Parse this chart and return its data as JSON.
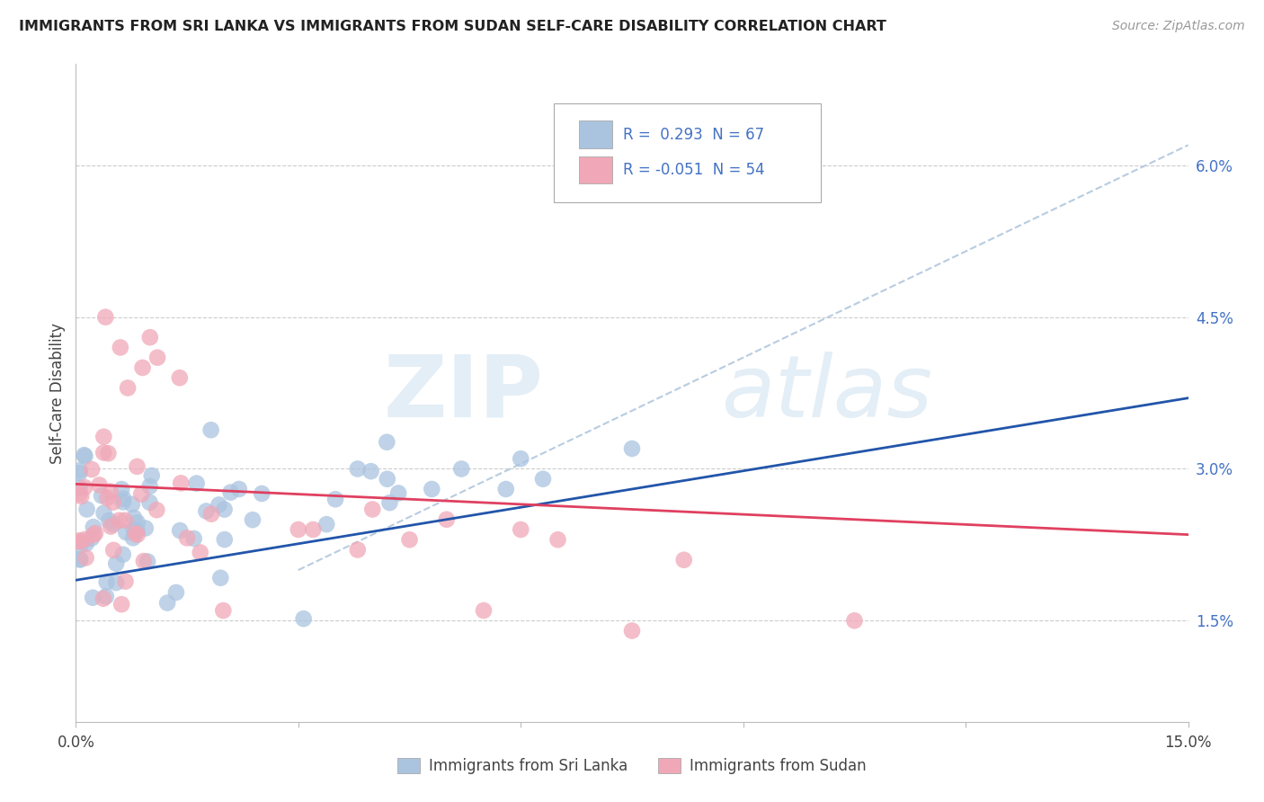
{
  "title": "IMMIGRANTS FROM SRI LANKA VS IMMIGRANTS FROM SUDAN SELF-CARE DISABILITY CORRELATION CHART",
  "source": "Source: ZipAtlas.com",
  "ylabel": "Self-Care Disability",
  "xlim": [
    0.0,
    15.0
  ],
  "ylim": [
    0.5,
    7.0
  ],
  "y_tick_positions": [
    1.5,
    3.0,
    4.5,
    6.0
  ],
  "y_tick_labels": [
    "1.5%",
    "3.0%",
    "4.5%",
    "6.0%"
  ],
  "legend_r1": "R =  0.293",
  "legend_n1": "N = 67",
  "legend_r2": "R = -0.051",
  "legend_n2": "N = 54",
  "legend_label1": "Immigrants from Sri Lanka",
  "legend_label2": "Immigrants from Sudan",
  "color_sri_lanka": "#aac4e0",
  "color_sudan": "#f0a8b8",
  "color_line_sri_lanka": "#2255aa",
  "color_line_sudan": "#e04060",
  "color_dashed_line": "#b8cce0",
  "watermark_zip": "ZIP",
  "watermark_atlas": "atlas",
  "sl_trend_x0": 0.0,
  "sl_trend_y0": 1.9,
  "sl_trend_x1": 15.0,
  "sl_trend_y1": 3.7,
  "su_trend_x0": 0.0,
  "su_trend_y0": 2.85,
  "su_trend_x1": 15.0,
  "su_trend_y1": 2.35,
  "dash_trend_x0": 3.0,
  "dash_trend_y0": 2.0,
  "dash_trend_x1": 15.0,
  "dash_trend_y1": 6.2
}
